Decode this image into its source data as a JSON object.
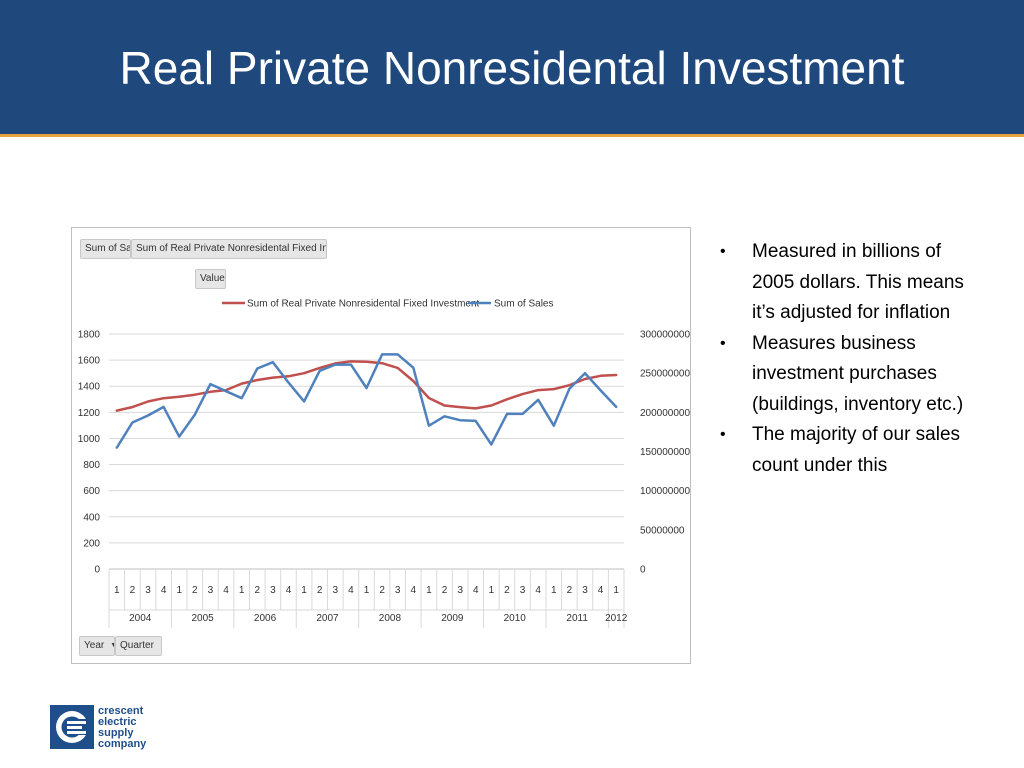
{
  "slide": {
    "title": "Real Private Nonresidental Investment"
  },
  "pivot": {
    "sales_button": "Sum of Sales",
    "investment_button": "Sum of Real Private Nonresidental Fixed Investment",
    "values_button": "Values",
    "year_button": "Year",
    "quarter_button": "Quarter"
  },
  "bullets": [
    "Measured in billions of 2005 dollars. This means it’s adjusted for inflation",
    "Measures business investment purchases (buildings, inventory etc.)",
    "The majority of our sales count under this"
  ],
  "logo": {
    "lines": [
      "crescent",
      "electric",
      "supply",
      "company"
    ]
  },
  "colors": {
    "header": "#1f497d",
    "header_rule": "#e8a33c",
    "investment_line": "#c0504d",
    "sales_line": "#4f81bd",
    "logo_blue": "#1f4f8b"
  },
  "chart_data": {
    "type": "line",
    "legend_position": "top",
    "grid": true,
    "quarters": [
      "1",
      "2",
      "3",
      "4",
      "1",
      "2",
      "3",
      "4",
      "1",
      "2",
      "3",
      "4",
      "1",
      "2",
      "3",
      "4",
      "1",
      "2",
      "3",
      "4",
      "1",
      "2",
      "3",
      "4",
      "1",
      "2",
      "3",
      "4",
      "1",
      "2",
      "3",
      "4",
      "1"
    ],
    "years": [
      {
        "label": "2004",
        "count": 4
      },
      {
        "label": "2005",
        "count": 4
      },
      {
        "label": "2006",
        "count": 4
      },
      {
        "label": "2007",
        "count": 4
      },
      {
        "label": "2008",
        "count": 4
      },
      {
        "label": "2009",
        "count": 4
      },
      {
        "label": "2010",
        "count": 4
      },
      {
        "label": "2011",
        "count": 4
      },
      {
        "label": "2012",
        "count": 1
      }
    ],
    "y_left": {
      "min": 0,
      "max": 1800,
      "ticks": [
        "0",
        "200",
        "400",
        "600",
        "800",
        "1000",
        "1200",
        "1400",
        "1600",
        "1800"
      ]
    },
    "y_right": {
      "min": 0,
      "max": 300000000,
      "ticks": [
        "0",
        "50000000",
        "100000000",
        "150000000",
        "200000000",
        "250000000",
        "300000000"
      ]
    },
    "series": [
      {
        "name": "Sum of Real Private Nonresidental Fixed Investment",
        "axis": "left",
        "values": [
          1213,
          1240,
          1283,
          1308,
          1320,
          1335,
          1357,
          1370,
          1420,
          1448,
          1466,
          1476,
          1500,
          1540,
          1575,
          1590,
          1588,
          1576,
          1540,
          1440,
          1310,
          1252,
          1240,
          1230,
          1252,
          1300,
          1340,
          1370,
          1378,
          1408,
          1455,
          1480,
          1486
        ]
      },
      {
        "name": "Sum of Sales",
        "axis": "right",
        "values": [
          155000000,
          187000000,
          196000000,
          207000000,
          169000000,
          197000000,
          236000000,
          227000000,
          218000000,
          256000000,
          264000000,
          238000000,
          214000000,
          253000000,
          261000000,
          261000000,
          231000000,
          274000000,
          274000000,
          257000000,
          183000000,
          195000000,
          190000000,
          189000000,
          159000000,
          198000000,
          198000000,
          216000000,
          183000000,
          230000000,
          250000000,
          228000000,
          207000000
        ]
      }
    ]
  }
}
